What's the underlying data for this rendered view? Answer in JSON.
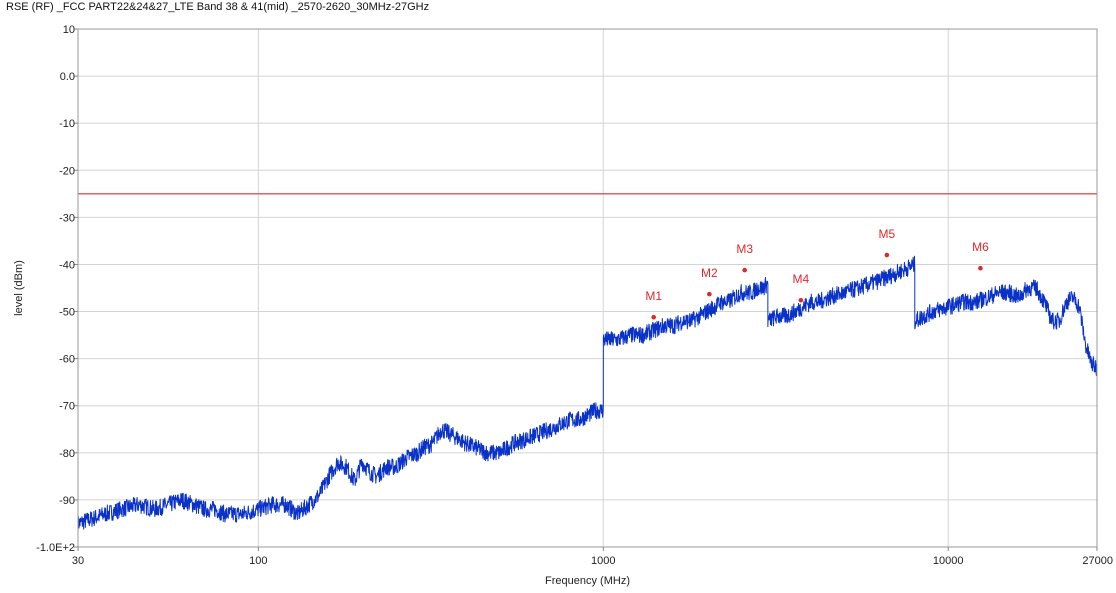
{
  "chart_data": {
    "type": "line",
    "title": "RSE (RF)  _FCC PART22&24&27_LTE Band 38 & 41(mid) _2570-2620_30MHz-27GHz",
    "xlabel": "Frequency (MHz)",
    "ylabel": "level (dBm)",
    "x_scale": "log",
    "xlim": [
      30,
      27000
    ],
    "ylim": [
      -100,
      10
    ],
    "x_ticks": [
      30,
      100,
      1000,
      10000,
      27000
    ],
    "x_tick_labels": [
      "30",
      "100",
      "1000",
      "10000",
      "27000"
    ],
    "y_ticks": [
      10,
      0,
      -10,
      -20,
      -30,
      -40,
      -50,
      -60,
      -70,
      -80,
      -90,
      -100
    ],
    "y_tick_labels": [
      "10",
      "0.0",
      "-10",
      "-20",
      "-30",
      "-40",
      "-50",
      "-60",
      "-70",
      "-80",
      "-90",
      "-1.0E+2"
    ],
    "grid": true,
    "limit_line": {
      "y": -25,
      "color": "#e05050"
    },
    "series": [
      {
        "color": "#0a32c8",
        "x": [
          30,
          33,
          36,
          40,
          45,
          50,
          55,
          60,
          65,
          70,
          75,
          80,
          90,
          100,
          110,
          120,
          130,
          140,
          150,
          160,
          170,
          180,
          190,
          200,
          210,
          220,
          235,
          250,
          270,
          290,
          300,
          320,
          340,
          360,
          380,
          400,
          430,
          460,
          500,
          550,
          600,
          650,
          700,
          750,
          800,
          850,
          900,
          950,
          1000,
          1000.5,
          1100,
          1200,
          1300,
          1400,
          1500,
          1600,
          1700,
          1800,
          1900,
          2000,
          2100,
          2200,
          2300,
          2400,
          2500,
          2560,
          2580,
          2600,
          2700,
          2800,
          2900,
          3000,
          3000.5,
          3200,
          3400,
          3600,
          3800,
          4000,
          4200,
          4500,
          5000,
          5500,
          6000,
          6500,
          7000,
          7500,
          8000,
          8000.5,
          8500,
          9000,
          10000,
          11000,
          12000,
          13000,
          14000,
          15000,
          16000,
          17000,
          18000,
          19000,
          20000,
          21000,
          22000,
          23000,
          24000,
          25000,
          26000,
          27000
        ],
        "y": [
          -95,
          -94,
          -93,
          -92,
          -91,
          -92,
          -91,
          -90,
          -91,
          -92,
          -92,
          -93,
          -93,
          -92,
          -91,
          -91,
          -93,
          -91,
          -89,
          -85,
          -82,
          -83,
          -86,
          -82,
          -84,
          -85,
          -83,
          -83,
          -81,
          -80,
          -79,
          -78,
          -75,
          -76,
          -77,
          -78,
          -79,
          -80,
          -80,
          -78,
          -77,
          -76,
          -75,
          -74,
          -73,
          -73,
          -72,
          -71,
          -71,
          -56,
          -56,
          -55,
          -55,
          -54,
          -53,
          -53,
          -52,
          -52,
          -51,
          -50,
          -49,
          -48,
          -48,
          -47,
          -46,
          -46,
          -46,
          -46,
          -46,
          -45,
          -45,
          -44,
          -52,
          -51,
          -51,
          -50,
          -49,
          -48,
          -48,
          -47,
          -46,
          -45,
          -44,
          -43,
          -42,
          -41,
          -40,
          -52,
          -51,
          -50,
          -49,
          -48,
          -48,
          -47,
          -46,
          -46,
          -47,
          -45,
          -45,
          -48,
          -52,
          -52,
          -48,
          -47,
          -49,
          -57,
          -61,
          -62
        ]
      }
    ],
    "markers": [
      {
        "label": "M1",
        "x": 1400,
        "y": -51.2
      },
      {
        "label": "M2",
        "x": 2030,
        "y": -46.3
      },
      {
        "label": "M3",
        "x": 2570,
        "y": -41.2
      },
      {
        "label": "M4",
        "x": 3740,
        "y": -47.6
      },
      {
        "label": "M5",
        "x": 6640,
        "y": -38.0
      },
      {
        "label": "M6",
        "x": 12400,
        "y": -40.8
      }
    ],
    "marker_color": "#e0282b"
  }
}
